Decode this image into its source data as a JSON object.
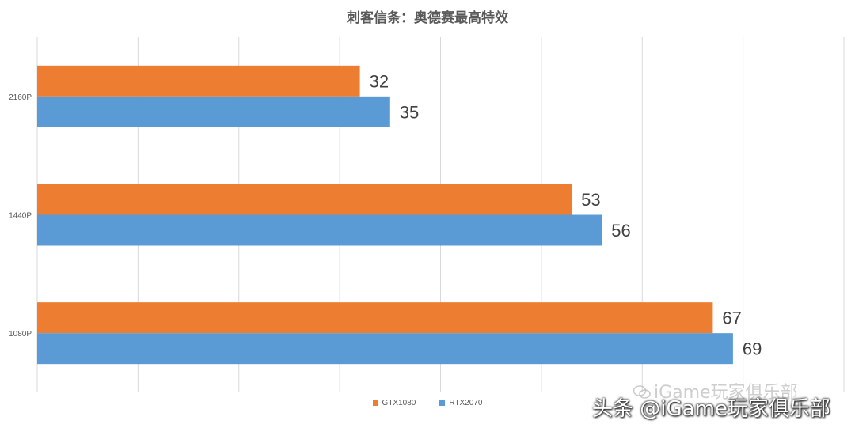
{
  "chart_data": {
    "type": "bar",
    "orientation": "horizontal",
    "title": "刺客信条：奥德赛最高特效",
    "categories": [
      "2160P",
      "1440P",
      "1080P"
    ],
    "series": [
      {
        "name": "GTX1080",
        "values": [
          32,
          53,
          67
        ],
        "color": "#ED7D31"
      },
      {
        "name": "RTX2070",
        "values": [
          35,
          56,
          69
        ],
        "color": "#5B9BD5"
      }
    ],
    "xlim": [
      0,
      80
    ],
    "grid": true,
    "legend_position": "bottom"
  },
  "watermarks": {
    "wechat": "iGame玩家俱乐部",
    "toutiao": "头条 @iGame玩家俱乐部"
  }
}
